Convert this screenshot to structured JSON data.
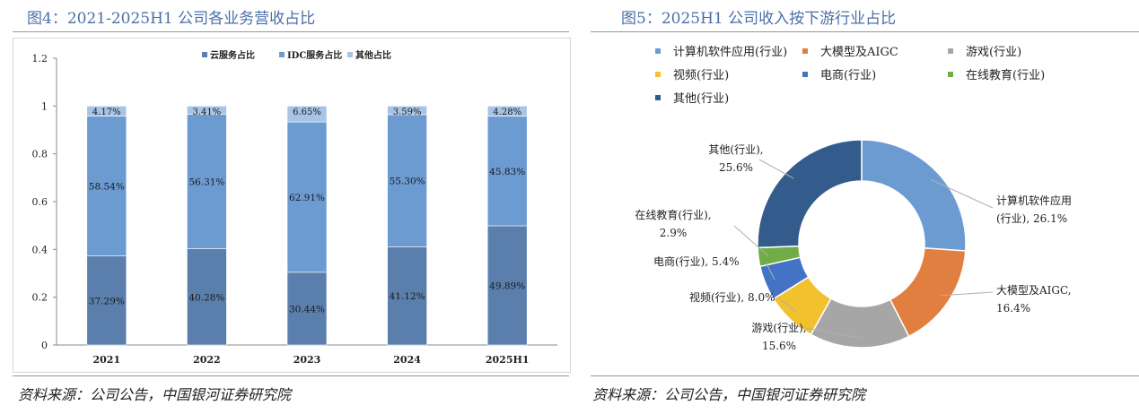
{
  "left": {
    "title": "图4：2021-2025H1 公司各业务营收占比",
    "source": "资料来源：公司公告，中国银河证券研究院"
  },
  "right": {
    "title": "图5：2025H1 公司收入按下游行业占比",
    "source": "资料来源：公司公告，中国银河证券研究院"
  },
  "colors": {
    "cloud": "#5b7fad",
    "idc": "#6c9bd2",
    "other": "#a7c3e6",
    "title": "#4a6fa8"
  },
  "chart_data": [
    {
      "type": "bar",
      "stacked": true,
      "categories": [
        "2021",
        "2022",
        "2023",
        "2024",
        "2025H1"
      ],
      "series": [
        {
          "name": "云服务占比",
          "values": [
            0.3729,
            0.4028,
            0.3044,
            0.4112,
            0.4989
          ],
          "labels": [
            "37.29%",
            "40.28%",
            "30.44%",
            "41.12%",
            "49.89%"
          ],
          "color": "#5b7fad"
        },
        {
          "name": "IDC服务占比",
          "values": [
            0.5854,
            0.5631,
            0.6291,
            0.553,
            0.4583
          ],
          "labels": [
            "58.54%",
            "56.31%",
            "62.91%",
            "55.30%",
            "45.83%"
          ],
          "color": "#6c9bd2"
        },
        {
          "name": "其他占比",
          "values": [
            0.0417,
            0.0341,
            0.0665,
            0.0359,
            0.0428
          ],
          "labels": [
            "4.17%",
            "3.41%",
            "6.65%",
            "3.59%",
            "4.28%"
          ],
          "color": "#a7c3e6"
        }
      ],
      "ylim": [
        0,
        1.2
      ],
      "yticks": [
        "0",
        "0.2",
        "0.4",
        "0.6",
        "0.8",
        "1",
        "1.2"
      ],
      "legend": "top-center",
      "grid": false
    },
    {
      "type": "pie",
      "donut": true,
      "legend": "top",
      "slices": [
        {
          "name": "计算机软件应用(行业)",
          "value": 26.1,
          "color": "#6c9bd2",
          "label_lines": [
            "计算机软件应用",
            "(行业), 26.1%"
          ]
        },
        {
          "name": "大模型及AIGC",
          "value": 16.4,
          "color": "#e07f3f",
          "label_lines": [
            "大模型及AIGC,",
            "16.4%"
          ]
        },
        {
          "name": "游戏(行业)",
          "value": 15.6,
          "color": "#a6a6a6",
          "label_lines": [
            "游戏(行业),",
            "15.6%"
          ]
        },
        {
          "name": "视频(行业)",
          "value": 8.0,
          "color": "#f2c12e",
          "label_lines": [
            "视频(行业), 8.0%"
          ]
        },
        {
          "name": "电商(行业)",
          "value": 5.4,
          "color": "#4472c4",
          "label_lines": [
            "电商(行业), 5.4%"
          ]
        },
        {
          "name": "在线教育(行业)",
          "value": 2.9,
          "color": "#70ad47",
          "label_lines": [
            "在线教育(行业),",
            "2.9%"
          ]
        },
        {
          "name": "其他(行业)",
          "value": 25.6,
          "color": "#335b8c",
          "label_lines": [
            "其他(行业),",
            "25.6%"
          ]
        }
      ]
    }
  ]
}
